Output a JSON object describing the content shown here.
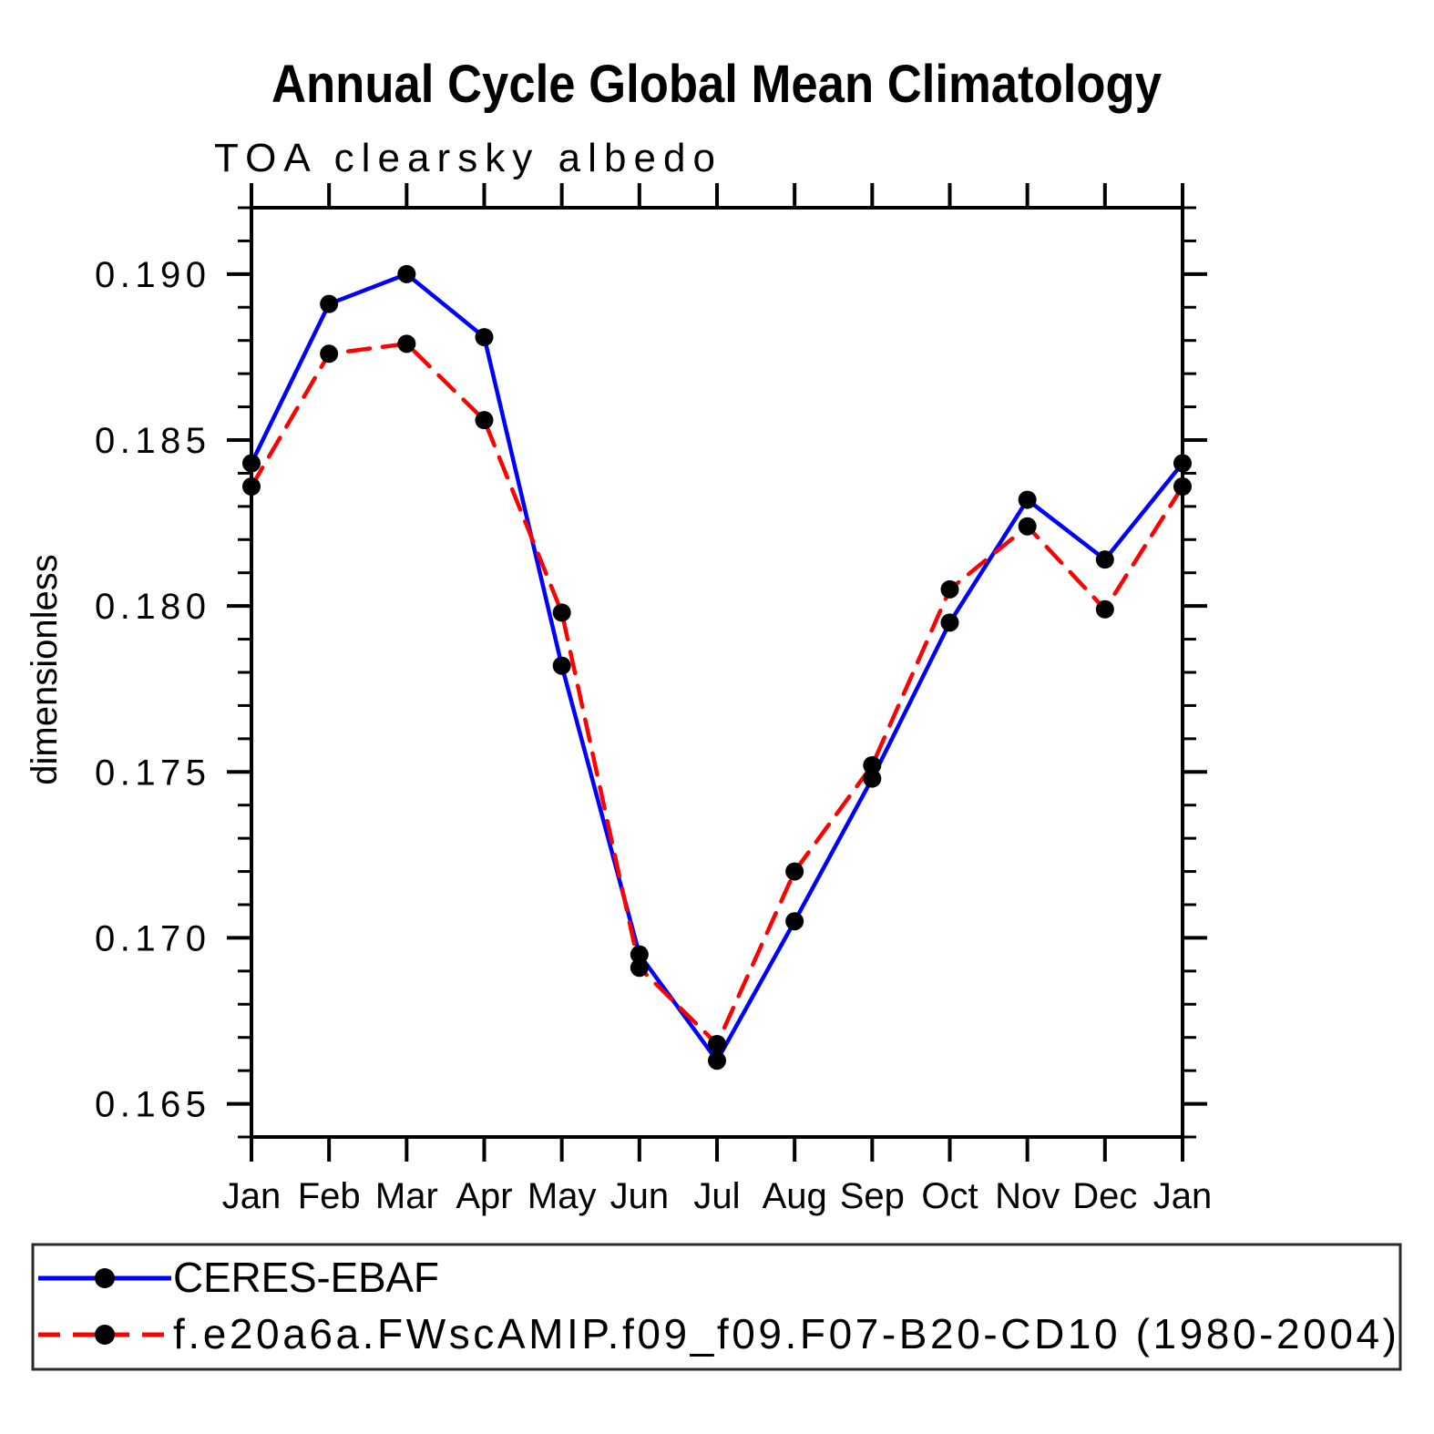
{
  "header": {
    "title": "Annual Cycle Global Mean Climatology",
    "subtitle": "TOA clearsky albedo"
  },
  "chart_data": {
    "type": "line",
    "title": "Annual Cycle Global Mean Climatology",
    "subtitle": "TOA clearsky albedo",
    "xlabel": "",
    "ylabel": "dimensionless",
    "categories": [
      "Jan",
      "Feb",
      "Mar",
      "Apr",
      "May",
      "Jun",
      "Jul",
      "Aug",
      "Sep",
      "Oct",
      "Nov",
      "Dec",
      "Jan"
    ],
    "series": [
      {
        "name": "CERES-EBAF",
        "color": "#0000ff",
        "line_style": "solid",
        "marker": "filled-circle",
        "marker_color": "#000000",
        "values": [
          0.1843,
          0.1891,
          0.19,
          0.1881,
          0.1782,
          0.1695,
          0.1663,
          0.1705,
          0.1748,
          0.1795,
          0.1832,
          0.1814,
          0.1843
        ]
      },
      {
        "name": "f.e20a6a.FWscAMIP.f09_f09.F07-B20-CD10 (1980-2004)",
        "color": "#ff0000",
        "line_style": "dashed",
        "marker": "filled-circle",
        "marker_color": "#000000",
        "values": [
          0.1836,
          0.1876,
          0.1879,
          0.1856,
          0.1798,
          0.1691,
          0.1668,
          0.172,
          0.1752,
          0.1805,
          0.1824,
          0.1799,
          0.1836
        ]
      }
    ],
    "ylim": [
      0.164,
      0.192
    ],
    "ytick_labels": [
      "0.165",
      "0.170",
      "0.175",
      "0.180",
      "0.185",
      "0.190"
    ],
    "ytick_major_step": 0.005,
    "ytick_minor_step": 0.001,
    "grid": false,
    "legend_position": "bottom-left-box",
    "axis_color": "#000000"
  }
}
